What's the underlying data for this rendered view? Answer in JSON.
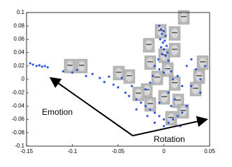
{
  "chart_data": {
    "type": "scatter",
    "annotations": [
      "Emotion",
      "Rotation"
    ],
    "xlim": [
      -0.15,
      0.05
    ],
    "xticks": [
      -0.15,
      -0.1,
      -0.05,
      0,
      0.05
    ],
    "ylim": [
      -0.1,
      0.1
    ],
    "yticks": [
      -0.1,
      -0.08,
      -0.06,
      -0.04,
      -0.02,
      0,
      0.02,
      0.04,
      0.06,
      0.08,
      0.1
    ],
    "series": [
      {
        "color": "#2f55e0",
        "x": [
          -0.146,
          -0.143,
          -0.139,
          -0.136,
          -0.133,
          -0.13,
          -0.127,
          -0.11,
          -0.1,
          -0.095,
          -0.085,
          -0.078,
          -0.07,
          -0.065,
          -0.06,
          -0.055,
          -0.05,
          -0.046,
          -0.042,
          -0.038,
          -0.035,
          -0.03,
          -0.005,
          -0.003,
          0,
          -0.002,
          0.002,
          -0.004,
          0.001,
          -0.001,
          0.003,
          -0.003,
          0,
          0.004,
          -0.002,
          0.002,
          -0.006,
          0.005,
          -0.01,
          -0.005,
          0,
          0.008,
          -0.012,
          0.01,
          -0.015,
          0.015,
          0.02,
          -0.02,
          0.005,
          0.025,
          0.03,
          0.035,
          0.04,
          0.045,
          0.03,
          0.04,
          -0.025,
          -0.02,
          -0.015,
          -0.01,
          -0.005,
          0,
          0.005,
          0.01,
          0.015,
          -0.01,
          0,
          0.02,
          -0.018,
          0.008,
          -0.005,
          0.012,
          0.025,
          -0.03,
          0.018
        ],
        "y": [
          0.024,
          0.022,
          0.02,
          0.021,
          0.019,
          0.02,
          0.018,
          0.012,
          0.01,
          0.014,
          0.005,
          0.008,
          0.002,
          -0.004,
          0.004,
          -0.008,
          -0.012,
          0.002,
          -0.02,
          -0.025,
          -0.01,
          -0.03,
          0.08,
          0.075,
          0.072,
          0.068,
          0.065,
          0.06,
          0.058,
          0.055,
          0.05,
          0.048,
          0.045,
          0.04,
          0.038,
          0.035,
          0.03,
          0.028,
          0.02,
          0.015,
          0.01,
          0.012,
          0.005,
          0,
          -0.005,
          0.005,
          -0.01,
          -0.015,
          -0.02,
          0.02,
          0.03,
          0.015,
          0,
          0.02,
          -0.01,
          -0.02,
          -0.035,
          -0.04,
          -0.045,
          -0.05,
          -0.055,
          -0.06,
          -0.065,
          -0.06,
          -0.055,
          -0.065,
          -0.07,
          -0.05,
          -0.055,
          -0.04,
          -0.035,
          -0.03,
          -0.04,
          -0.045,
          -0.07
        ]
      }
    ]
  }
}
